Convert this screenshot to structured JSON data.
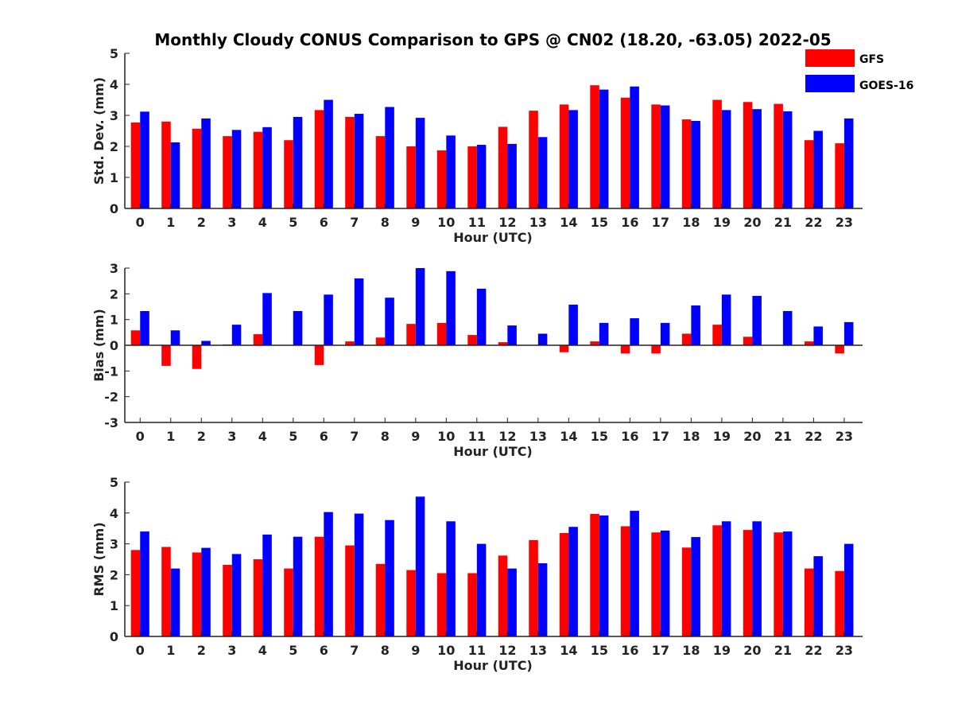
{
  "title": "Monthly Cloudy CONUS Comparison to GPS @ CN02 (18.20, -63.05) 2022-05",
  "legend": [
    {
      "name": "GFS",
      "color": "#ff0000"
    },
    {
      "name": "GOES-16",
      "color": "#0000ff"
    }
  ],
  "chart_data": [
    {
      "type": "bar",
      "ylabel": "Std. Dev. (mm)",
      "xlabel": "Hour (UTC)",
      "ylim": [
        0,
        5
      ],
      "yticks": [
        0,
        1,
        2,
        3,
        4,
        5
      ],
      "categories": [
        "0",
        "1",
        "2",
        "3",
        "4",
        "5",
        "6",
        "7",
        "8",
        "9",
        "10",
        "11",
        "12",
        "13",
        "14",
        "15",
        "16",
        "17",
        "18",
        "19",
        "20",
        "21",
        "22",
        "23"
      ],
      "series": [
        {
          "name": "GFS",
          "values": [
            2.77,
            2.8,
            2.57,
            2.33,
            2.47,
            2.2,
            3.17,
            2.95,
            2.33,
            2.0,
            1.87,
            2.0,
            2.63,
            3.15,
            3.35,
            3.97,
            3.57,
            3.35,
            2.87,
            3.5,
            3.43,
            3.37,
            2.2,
            2.1
          ]
        },
        {
          "name": "GOES-16",
          "values": [
            3.12,
            2.13,
            2.9,
            2.53,
            2.62,
            2.95,
            3.5,
            3.05,
            3.27,
            2.92,
            2.35,
            2.05,
            2.08,
            2.3,
            3.17,
            3.83,
            3.93,
            3.32,
            2.82,
            3.17,
            3.2,
            3.13,
            2.5,
            2.9
          ]
        }
      ]
    },
    {
      "type": "bar",
      "ylabel": "Bias (mm)",
      "xlabel": "Hour (UTC)",
      "ylim": [
        -3,
        3
      ],
      "yticks": [
        -3,
        -2,
        -1,
        0,
        1,
        2,
        3
      ],
      "categories": [
        "0",
        "1",
        "2",
        "3",
        "4",
        "5",
        "6",
        "7",
        "8",
        "9",
        "10",
        "11",
        "12",
        "13",
        "14",
        "15",
        "16",
        "17",
        "18",
        "19",
        "20",
        "21",
        "22",
        "23"
      ],
      "series": [
        {
          "name": "GFS",
          "values": [
            0.58,
            -0.8,
            -0.92,
            0.03,
            0.43,
            0.0,
            -0.77,
            0.15,
            0.3,
            0.83,
            0.87,
            0.4,
            0.12,
            0.0,
            -0.27,
            0.15,
            -0.32,
            -0.32,
            0.45,
            0.8,
            0.33,
            0.0,
            0.15,
            -0.32
          ]
        },
        {
          "name": "GOES-16",
          "values": [
            1.33,
            0.58,
            0.17,
            0.8,
            2.03,
            1.33,
            1.97,
            2.6,
            1.85,
            3.0,
            2.88,
            2.2,
            0.77,
            0.45,
            1.58,
            0.87,
            1.05,
            0.87,
            1.55,
            1.97,
            1.92,
            1.33,
            0.73,
            0.9
          ]
        }
      ]
    },
    {
      "type": "bar",
      "ylabel": "RMS (mm)",
      "xlabel": "Hour (UTC)",
      "ylim": [
        0,
        5
      ],
      "yticks": [
        0,
        1,
        2,
        3,
        4,
        5
      ],
      "categories": [
        "0",
        "1",
        "2",
        "3",
        "4",
        "5",
        "6",
        "7",
        "8",
        "9",
        "10",
        "11",
        "12",
        "13",
        "14",
        "15",
        "16",
        "17",
        "18",
        "19",
        "20",
        "21",
        "22",
        "23"
      ],
      "series": [
        {
          "name": "GFS",
          "values": [
            2.8,
            2.9,
            2.72,
            2.32,
            2.5,
            2.2,
            3.23,
            2.95,
            2.35,
            2.15,
            2.05,
            2.05,
            2.62,
            3.12,
            3.35,
            3.97,
            3.57,
            3.37,
            2.88,
            3.6,
            3.45,
            3.37,
            2.2,
            2.12
          ]
        },
        {
          "name": "GOES-16",
          "values": [
            3.4,
            2.2,
            2.87,
            2.67,
            3.3,
            3.23,
            4.03,
            3.98,
            3.77,
            4.53,
            3.73,
            3.0,
            2.2,
            2.37,
            3.55,
            3.92,
            4.07,
            3.43,
            3.22,
            3.73,
            3.73,
            3.4,
            2.6,
            3.0
          ]
        }
      ]
    }
  ]
}
